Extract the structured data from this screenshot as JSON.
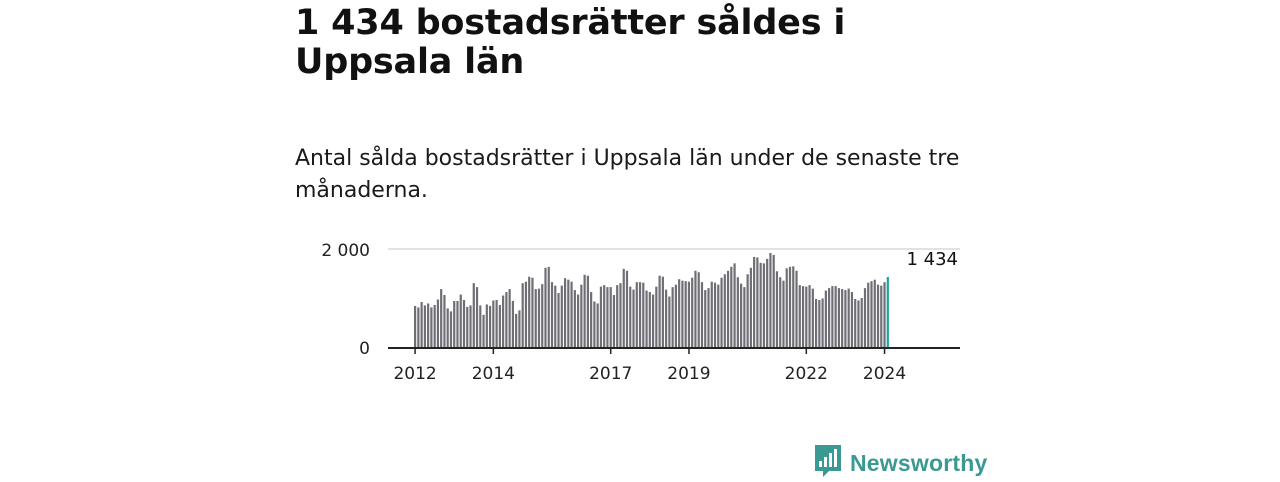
{
  "title": "1 434 bostadsrätter såldes i Uppsala län",
  "subtitle": "Antal sålda bostadsrätter i Uppsala län under de senaste tre månaderna.",
  "brand": {
    "name": "Newsworthy",
    "icon": "newsworthy-logo-icon"
  },
  "colors": {
    "bar": "#6f6e75",
    "highlight": "#1ba39c",
    "grid": "#d9d9d9",
    "axis": "#222222",
    "brand": "#3a9a93"
  },
  "chart_data": {
    "type": "bar",
    "x_start": "2012-01",
    "x_end": "2024-09",
    "xticks": [
      "2012",
      "2014",
      "2017",
      "2019",
      "2022",
      "2024"
    ],
    "yticks": [
      "0",
      "2 000"
    ],
    "ylim": [
      0,
      2000
    ],
    "highlight_label": "1 434",
    "values": [
      850,
      820,
      930,
      860,
      900,
      820,
      870,
      980,
      1190,
      1070,
      800,
      740,
      950,
      950,
      1080,
      970,
      830,
      860,
      1310,
      1230,
      860,
      670,
      880,
      850,
      960,
      970,
      870,
      1060,
      1130,
      1190,
      950,
      690,
      760,
      1310,
      1340,
      1440,
      1420,
      1190,
      1200,
      1290,
      1620,
      1640,
      1330,
      1260,
      1110,
      1260,
      1410,
      1380,
      1340,
      1170,
      1080,
      1280,
      1480,
      1460,
      1130,
      940,
      900,
      1240,
      1270,
      1230,
      1230,
      1070,
      1270,
      1310,
      1600,
      1560,
      1240,
      1180,
      1330,
      1330,
      1320,
      1160,
      1130,
      1080,
      1240,
      1460,
      1440,
      1180,
      1040,
      1230,
      1280,
      1390,
      1360,
      1350,
      1340,
      1420,
      1560,
      1530,
      1330,
      1170,
      1210,
      1340,
      1320,
      1280,
      1420,
      1490,
      1560,
      1640,
      1710,
      1430,
      1300,
      1230,
      1490,
      1620,
      1840,
      1830,
      1720,
      1710,
      1800,
      1920,
      1880,
      1550,
      1430,
      1360,
      1610,
      1640,
      1650,
      1560,
      1270,
      1250,
      1240,
      1270,
      1200,
      990,
      970,
      1000,
      1160,
      1210,
      1250,
      1250,
      1210,
      1190,
      1170,
      1200,
      1130,
      990,
      960,
      1010,
      1210,
      1320,
      1350,
      1380,
      1280,
      1260,
      1330,
      1434
    ]
  }
}
